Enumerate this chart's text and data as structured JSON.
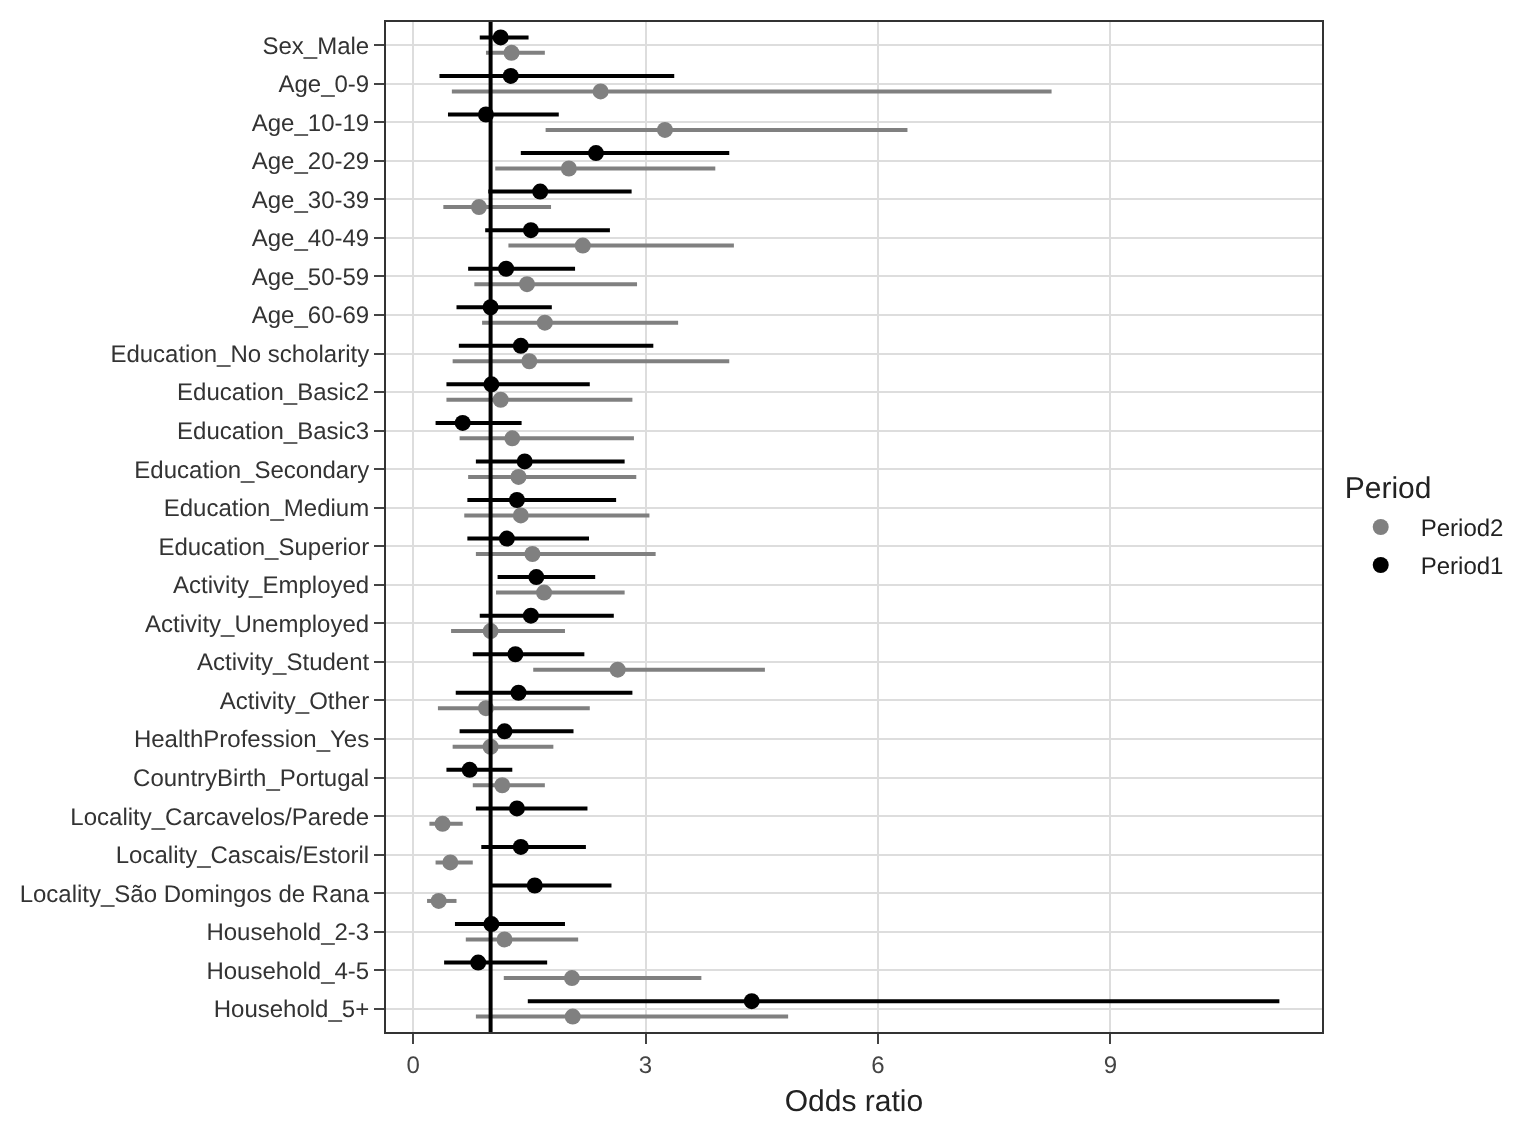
{
  "chart_data": {
    "type": "scatter",
    "orientation": "horizontal",
    "xlabel": "Odds ratio",
    "legend_title": "Period",
    "legend": "right",
    "grid": true,
    "marker": "circle",
    "xlim": [
      -0.35,
      11.73
    ],
    "xticks": [
      0,
      3,
      6,
      9
    ],
    "categories": [
      "Sex_Male",
      "Age_0-9",
      "Age_10-19",
      "Age_20-29",
      "Age_30-39",
      "Age_40-49",
      "Age_50-59",
      "Age_60-69",
      "Education_No scholarity",
      "Education_Basic2",
      "Education_Basic3",
      "Education_Secondary",
      "Education_Medium",
      "Education_Superior",
      "Activity_Employed",
      "Activity_Unemployed",
      "Activity_Student",
      "Activity_Other",
      "HealthProfession_Yes",
      "CountryBirth_Portugal",
      "Locality_Carcavelos/Parede",
      "Locality_Cascais/Estoril",
      "Locality_São Domingos de Rana",
      "Household_2-3",
      "Household_4-5",
      "Household_5+"
    ],
    "ref_lines": [
      {
        "axis": "x",
        "value": 1,
        "color": "#000000"
      }
    ],
    "series": [
      {
        "name": "Period2",
        "color": "#808080",
        "values": [
          1.27,
          2.42,
          3.25,
          2.01,
          0.85,
          2.19,
          1.47,
          1.7,
          1.5,
          1.13,
          1.28,
          1.36,
          1.39,
          1.54,
          1.69,
          1.0,
          2.64,
          0.94,
          1.0,
          1.15,
          0.38,
          0.48,
          0.33,
          1.18,
          2.05,
          2.06
        ],
        "errors": [
          [
            0.94,
            1.7
          ],
          [
            0.5,
            8.24
          ],
          [
            1.71,
            6.38
          ],
          [
            1.06,
            3.9
          ],
          [
            0.39,
            1.78
          ],
          [
            1.23,
            4.14
          ],
          [
            0.79,
            2.89
          ],
          [
            0.89,
            3.42
          ],
          [
            0.51,
            4.08
          ],
          [
            0.43,
            2.83
          ],
          [
            0.6,
            2.85
          ],
          [
            0.71,
            2.88
          ],
          [
            0.66,
            3.05
          ],
          [
            0.81,
            3.13
          ],
          [
            1.07,
            2.73
          ],
          [
            0.49,
            1.96
          ],
          [
            1.55,
            4.54
          ],
          [
            0.32,
            2.28
          ],
          [
            0.51,
            1.81
          ],
          [
            0.77,
            1.7
          ],
          [
            0.21,
            0.64
          ],
          [
            0.29,
            0.77
          ],
          [
            0.18,
            0.56
          ],
          [
            0.68,
            2.13
          ],
          [
            1.17,
            3.72
          ],
          [
            0.81,
            4.84
          ]
        ]
      },
      {
        "name": "Period1",
        "color": "#000000",
        "values": [
          1.13,
          1.26,
          0.94,
          2.36,
          1.64,
          1.52,
          1.2,
          1.0,
          1.39,
          1.01,
          0.64,
          1.44,
          1.34,
          1.21,
          1.59,
          1.52,
          1.32,
          1.36,
          1.18,
          0.73,
          1.34,
          1.39,
          1.57,
          1.01,
          0.84,
          4.37
        ],
        "errors": [
          [
            0.86,
            1.49
          ],
          [
            0.34,
            3.37
          ],
          [
            0.45,
            1.88
          ],
          [
            1.39,
            4.08
          ],
          [
            0.97,
            2.82
          ],
          [
            0.93,
            2.54
          ],
          [
            0.71,
            2.09
          ],
          [
            0.56,
            1.79
          ],
          [
            0.59,
            3.1
          ],
          [
            0.43,
            2.28
          ],
          [
            0.29,
            1.4
          ],
          [
            0.81,
            2.73
          ],
          [
            0.7,
            2.62
          ],
          [
            0.7,
            2.27
          ],
          [
            1.09,
            2.35
          ],
          [
            0.86,
            2.59
          ],
          [
            0.77,
            2.21
          ],
          [
            0.55,
            2.83
          ],
          [
            0.6,
            2.07
          ],
          [
            0.43,
            1.28
          ],
          [
            0.81,
            2.25
          ],
          [
            0.88,
            2.23
          ],
          [
            0.98,
            2.56
          ],
          [
            0.54,
            1.96
          ],
          [
            0.4,
            1.73
          ],
          [
            1.48,
            11.18
          ]
        ]
      }
    ]
  }
}
